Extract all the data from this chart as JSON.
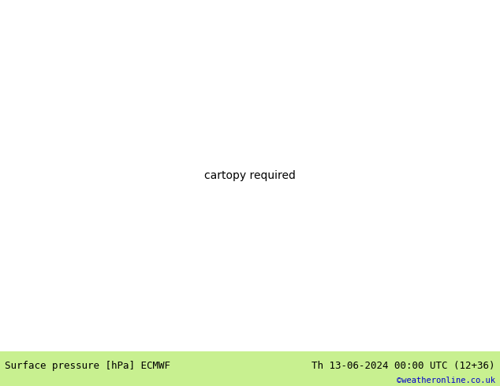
{
  "title_left": "Surface pressure [hPa] ECMWF",
  "title_right": "Th 13-06-2024 00:00 UTC (12+36)",
  "credit": "©weatheronline.co.uk",
  "bg_color_green": "#c8f0a0",
  "bg_color_grey": "#c8c8c8",
  "bg_color_grey2": "#d8d8d8",
  "contour_color_red": "#cc0000",
  "contour_color_black": "#000000",
  "contour_color_blue": "#0000bb",
  "contour_color_grey": "#808080",
  "bottom_bar_color": "#c8f090",
  "label_fontsize": 7,
  "title_fontsize": 9,
  "credit_color": "#0000cc",
  "fig_width": 6.34,
  "fig_height": 4.9,
  "dpi": 100,
  "lon_min": 4.0,
  "lon_max": 18.0,
  "lat_min": 46.5,
  "lat_max": 56.0
}
